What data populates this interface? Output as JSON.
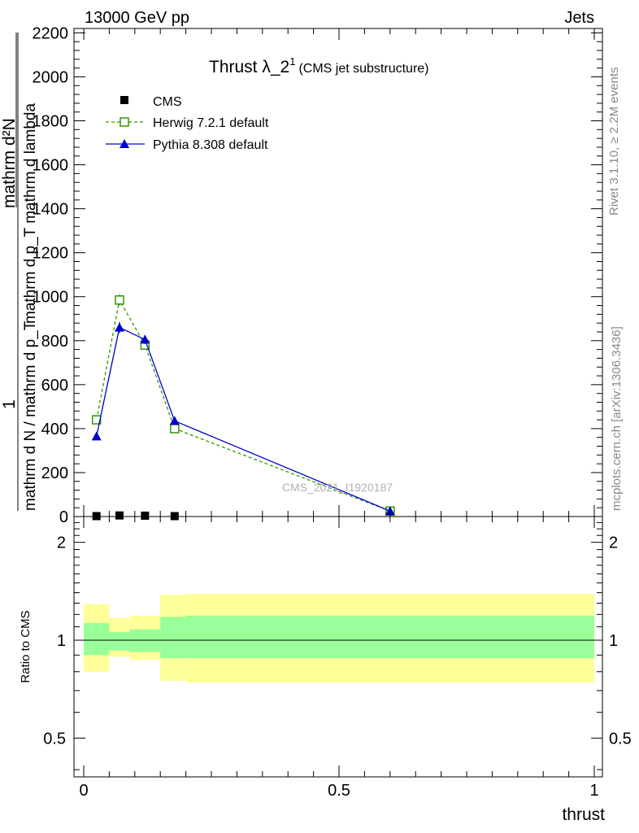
{
  "header": {
    "left": "13000 GeV pp",
    "right": "Jets"
  },
  "side_labels": {
    "rivet": "Rivet 3.1.10, ≥ 2.2M events",
    "mcplots": "mcplots.cern.ch [arXiv:1306.3436]"
  },
  "watermark": "CMS_2021_I1920187",
  "colors": {
    "cms": "#000000",
    "herwig": "#339900",
    "pythia": "#0000cc",
    "band_inner": "#99ff99",
    "band_outer": "#ffff99"
  },
  "chart_data": [
    {
      "type": "line",
      "title_main": "Thrust λ_2",
      "title_sup": "1",
      "title_sub": "(CMS jet substructure)",
      "ylabel": {
        "numerator": "1",
        "denominator": "mathrm d N / mathrm d p_T",
        "num_right": "mathrm d²N",
        "den_right": "mathrm d p_T mathrm d lambda"
      },
      "xlim": [
        0,
        1
      ],
      "ylim": [
        0,
        2220
      ],
      "y_ticks": [
        "0",
        "200",
        "400",
        "600",
        "800",
        "1000",
        "1200",
        "1400",
        "1600",
        "1800",
        "2000",
        "2200"
      ],
      "legend": [
        {
          "label": "CMS",
          "marker": "square-filled"
        },
        {
          "label": "Herwig 7.2.1 default",
          "marker": "square-open"
        },
        {
          "label": "Pythia 8.308 default",
          "marker": "triangle"
        }
      ],
      "series": [
        {
          "name": "CMS",
          "x": [
            0.025,
            0.07,
            0.12,
            0.178
          ],
          "y": [
            2,
            5,
            4,
            2
          ]
        },
        {
          "name": "Herwig 7.2.1 default",
          "x": [
            0.025,
            0.07,
            0.12,
            0.178,
            0.6
          ],
          "y": [
            440,
            985,
            780,
            400,
            25
          ],
          "yerr": [
            10,
            25,
            20,
            12,
            3
          ]
        },
        {
          "name": "Pythia 8.308 default",
          "x": [
            0.025,
            0.07,
            0.12,
            0.178,
            0.6
          ],
          "y": [
            365,
            860,
            805,
            435,
            25
          ],
          "yerr": [
            10,
            25,
            20,
            12,
            3
          ]
        }
      ]
    },
    {
      "type": "area",
      "ylabel": "Ratio to CMS",
      "xlabel": "thrust",
      "xlim": [
        0,
        1
      ],
      "ylim": [
        0.38,
        2.4
      ],
      "yscale": "log",
      "x_ticks": [
        "0",
        "0.5",
        "1"
      ],
      "y_ticks": [
        "0.5",
        "1",
        "2"
      ],
      "reference": 1,
      "bins": [
        {
          "x0": 0.0,
          "x1": 0.05,
          "inner": [
            0.9,
            1.13
          ],
          "outer": [
            0.8,
            1.29
          ]
        },
        {
          "x0": 0.05,
          "x1": 0.09,
          "inner": [
            0.93,
            1.06
          ],
          "outer": [
            0.89,
            1.17
          ]
        },
        {
          "x0": 0.09,
          "x1": 0.15,
          "inner": [
            0.92,
            1.08
          ],
          "outer": [
            0.87,
            1.19
          ]
        },
        {
          "x0": 0.15,
          "x1": 0.2,
          "inner": [
            0.88,
            1.18
          ],
          "outer": [
            0.75,
            1.38
          ]
        },
        {
          "x0": 0.2,
          "x1": 1.0,
          "inner": [
            0.88,
            1.19
          ],
          "outer": [
            0.74,
            1.39
          ]
        }
      ]
    }
  ]
}
